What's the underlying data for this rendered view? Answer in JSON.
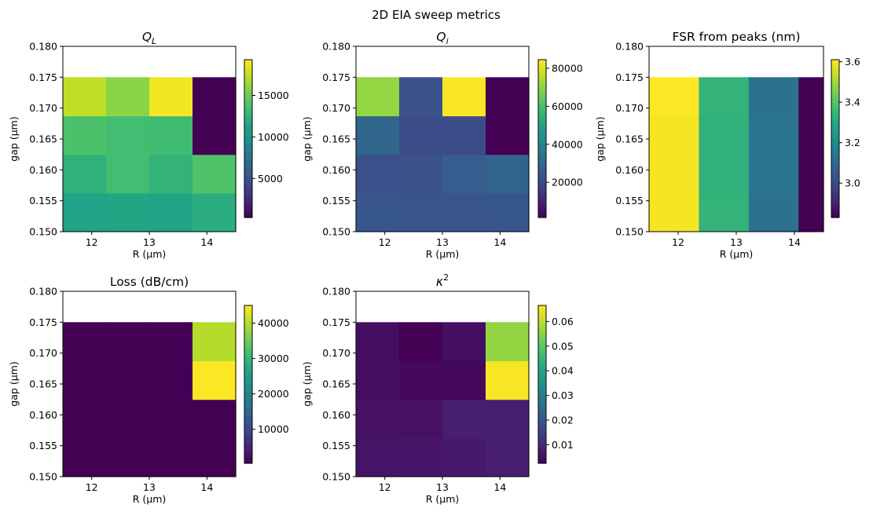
{
  "figure": {
    "suptitle": "2D EIA sweep metrics"
  },
  "chart_data": [
    {
      "type": "heatmap",
      "title": "Q_L",
      "title_display": "italic-subscript",
      "xlabel": "R (μm)",
      "ylabel": "gap (μm)",
      "x_categories": [
        12,
        13,
        14
      ],
      "x_ticks": [
        "12",
        "13",
        "14"
      ],
      "y_bins": [
        0.15,
        0.15625,
        0.1625,
        0.16875,
        0.175,
        0.18
      ],
      "y_ticks": [
        "0.150",
        "0.155",
        "0.160",
        "0.165",
        "0.170",
        "0.175",
        "0.180"
      ],
      "y_tick_values": [
        0.15,
        0.155,
        0.16,
        0.165,
        0.17,
        0.175,
        0.18
      ],
      "values_bottom_to_top": [
        [
          11300,
          11500,
          11400,
          12200
        ],
        [
          12500,
          13500,
          12700,
          14000
        ],
        [
          13900,
          13500,
          13400,
          300
        ],
        [
          17500,
          16000,
          19000,
          300
        ]
      ],
      "color_range": [
        300,
        19300
      ],
      "colorbar_ticks": [
        5000,
        10000,
        15000
      ],
      "colorbar_labels": [
        "5000",
        "10000",
        "15000"
      ],
      "colormap": "viridis"
    },
    {
      "type": "heatmap",
      "title": "Q_i",
      "title_display": "italic-subscript",
      "xlabel": "R (μm)",
      "ylabel": "gap (μm)",
      "x_categories": [
        12,
        13,
        14
      ],
      "x_ticks": [
        "12",
        "13",
        "14"
      ],
      "y_bins": [
        0.15,
        0.15625,
        0.1625,
        0.16875,
        0.175,
        0.18
      ],
      "y_ticks": [
        "0.150",
        "0.155",
        "0.160",
        "0.165",
        "0.170",
        "0.175",
        "0.180"
      ],
      "y_tick_values": [
        0.15,
        0.155,
        0.16,
        0.165,
        0.17,
        0.175,
        0.18
      ],
      "values_bottom_to_top": [
        [
          24000,
          23500,
          23500,
          24000
        ],
        [
          22000,
          22500,
          26000,
          28000
        ],
        [
          29000,
          21000,
          21000,
          1500
        ],
        [
          71000,
          22500,
          84000,
          1500
        ]
      ],
      "color_range": [
        1500,
        84500
      ],
      "colorbar_ticks": [
        20000,
        40000,
        60000,
        80000
      ],
      "colorbar_labels": [
        "20000",
        "40000",
        "60000",
        "80000"
      ],
      "colormap": "viridis"
    },
    {
      "type": "heatmap",
      "title": "FSR from peaks (nm)",
      "title_display": "plain",
      "xlabel": "R (μm)",
      "ylabel": "gap (μm)",
      "x_categories": [
        12,
        13,
        14
      ],
      "x_ticks": [
        "12",
        "13",
        "14"
      ],
      "y_bins": [
        0.15,
        0.15625,
        0.1625,
        0.16875,
        0.175,
        0.18
      ],
      "y_ticks": [
        "0.150",
        "0.155",
        "0.160",
        "0.165",
        "0.170",
        "0.175",
        "0.180"
      ],
      "y_tick_values": [
        0.15,
        0.155,
        0.16,
        0.165,
        0.17,
        0.175,
        0.18
      ],
      "values_bottom_to_top": [
        [
          3.6,
          3.6,
          3.34,
          3.34,
          3.12,
          3.12,
          2.83
        ],
        [
          3.6,
          3.6,
          3.33,
          3.33,
          3.13,
          3.13,
          2.83
        ],
        [
          3.6,
          3.6,
          3.33,
          3.33,
          3.13,
          3.13,
          2.83
        ],
        [
          3.61,
          3.61,
          3.34,
          3.34,
          3.12,
          3.12,
          2.83
        ]
      ],
      "x_columns": 7,
      "color_range": [
        2.83,
        3.61
      ],
      "colorbar_ticks": [
        3.0,
        3.2,
        3.4,
        3.6
      ],
      "colorbar_labels": [
        "3.0",
        "3.2",
        "3.4",
        "3.6"
      ],
      "colormap": "viridis"
    },
    {
      "type": "heatmap",
      "title": "Loss (dB/cm)",
      "title_display": "plain",
      "xlabel": "R (μm)",
      "ylabel": "gap (μm)",
      "x_categories": [
        12,
        13,
        14
      ],
      "x_ticks": [
        "12",
        "13",
        "14"
      ],
      "y_bins": [
        0.15,
        0.15625,
        0.1625,
        0.16875,
        0.175,
        0.18
      ],
      "y_ticks": [
        "0.150",
        "0.155",
        "0.160",
        "0.165",
        "0.170",
        "0.175",
        "0.180"
      ],
      "y_tick_values": [
        0.15,
        0.155,
        0.16,
        0.165,
        0.17,
        0.175,
        0.18
      ],
      "values_bottom_to_top": [
        [
          400,
          400,
          400,
          400
        ],
        [
          400,
          400,
          400,
          400
        ],
        [
          400,
          400,
          400,
          45000
        ],
        [
          400,
          400,
          400,
          40000
        ]
      ],
      "color_range": [
        400,
        45000
      ],
      "colorbar_ticks": [
        10000,
        20000,
        30000,
        40000
      ],
      "colorbar_labels": [
        "10000",
        "20000",
        "30000",
        "40000"
      ],
      "colormap": "viridis"
    },
    {
      "type": "heatmap",
      "title": "κ^2",
      "title_display": "italic-superscript",
      "xlabel": "R (μm)",
      "ylabel": "gap (μm)",
      "x_categories": [
        12,
        13,
        14
      ],
      "x_ticks": [
        "12",
        "13",
        "14"
      ],
      "y_bins": [
        0.15,
        0.15625,
        0.1625,
        0.16875,
        0.175,
        0.18
      ],
      "y_ticks": [
        "0.150",
        "0.155",
        "0.160",
        "0.165",
        "0.170",
        "0.175",
        "0.180"
      ],
      "y_tick_values": [
        0.15,
        0.155,
        0.16,
        0.165,
        0.17,
        0.175,
        0.18
      ],
      "values_bottom_to_top": [
        [
          0.006,
          0.0065,
          0.007,
          0.008
        ],
        [
          0.0055,
          0.0055,
          0.008,
          0.008
        ],
        [
          0.005,
          0.004,
          0.004,
          0.066
        ],
        [
          0.005,
          0.0025,
          0.005,
          0.056
        ]
      ],
      "color_range": [
        0.0025,
        0.0665
      ],
      "colorbar_ticks": [
        0.01,
        0.02,
        0.03,
        0.04,
        0.05,
        0.06
      ],
      "colorbar_labels": [
        "0.01",
        "0.02",
        "0.03",
        "0.04",
        "0.05",
        "0.06"
      ],
      "colormap": "viridis"
    }
  ]
}
